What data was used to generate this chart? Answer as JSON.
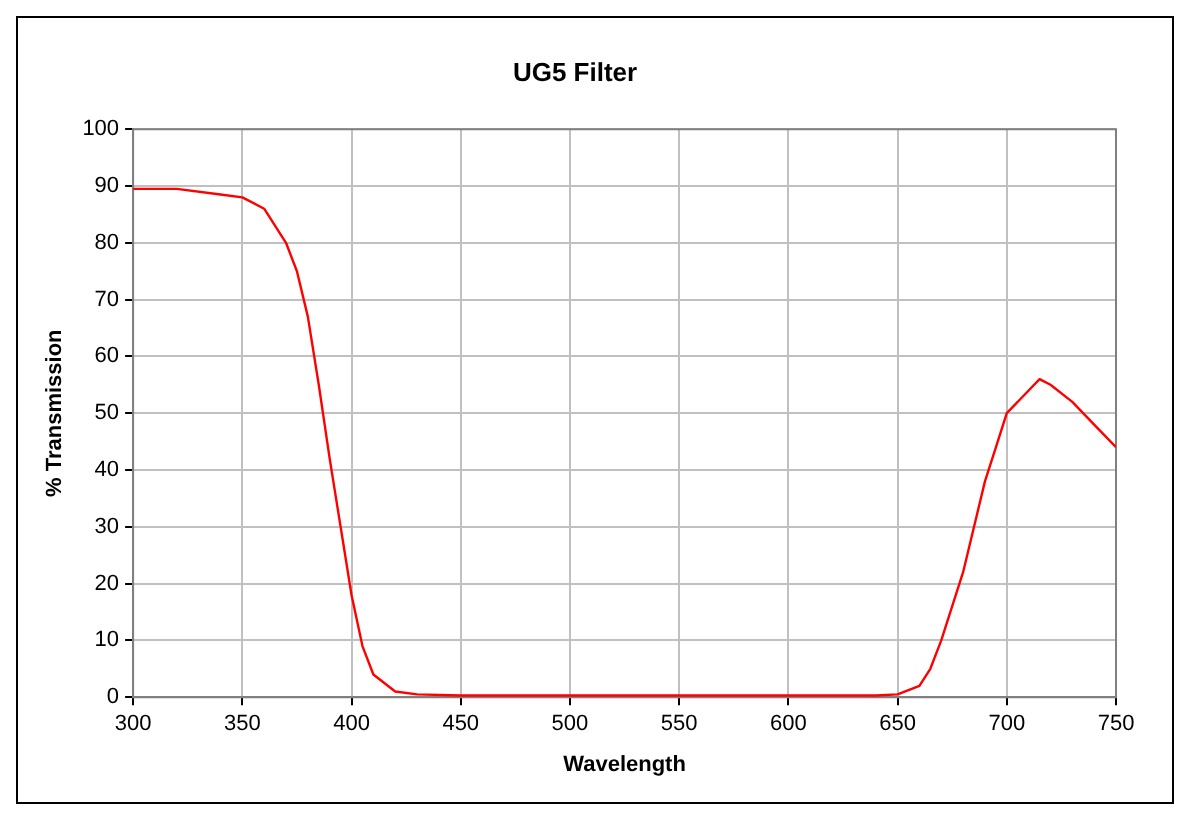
{
  "chart_data": {
    "type": "line",
    "title": "UG5 Filter",
    "xlabel": "Wavelength",
    "ylabel": "% Transmission",
    "x": [
      300,
      320,
      340,
      350,
      360,
      370,
      375,
      380,
      385,
      390,
      395,
      400,
      405,
      410,
      420,
      430,
      450,
      500,
      550,
      600,
      640,
      650,
      660,
      665,
      670,
      680,
      690,
      695,
      700,
      710,
      715,
      720,
      730,
      740,
      745,
      750
    ],
    "series": [
      {
        "color": "#ff0000",
        "values": [
          89.5,
          89.5,
          88.5,
          88,
          86,
          80,
          75,
          67,
          55,
          42,
          30,
          18,
          9,
          4,
          1,
          0.5,
          0.3,
          0.3,
          0.3,
          0.3,
          0.3,
          0.5,
          2,
          5,
          10,
          22,
          38,
          44,
          50,
          54,
          56,
          55,
          52,
          48,
          46,
          44
        ]
      }
    ],
    "xlim": [
      300,
      750
    ],
    "xticks": [
      300,
      350,
      400,
      450,
      500,
      550,
      600,
      650,
      700,
      750
    ],
    "ylim": [
      0,
      100
    ],
    "yticks": [
      0,
      10,
      20,
      30,
      40,
      50,
      60,
      70,
      80,
      90,
      100
    ],
    "grid": true,
    "legend": false,
    "marker": "none",
    "line_style": "solid"
  }
}
